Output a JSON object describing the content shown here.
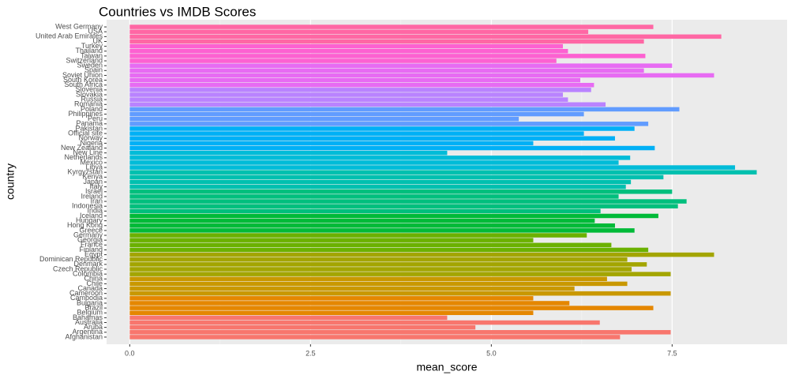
{
  "chart_data": {
    "type": "bar",
    "orientation": "horizontal",
    "title": "Countries vs IMDB Scores",
    "x_label": "mean_score",
    "y_label": "country",
    "categories": [
      "West Germany",
      "USA",
      "United Arab Emirates",
      "UK",
      "Turkey",
      "Thailand",
      "Taiwan",
      "Switzerland",
      "Sweden",
      "Spain",
      "Soviet Union",
      "South Korea",
      "South Africa",
      "Slovenia",
      "Slovakia",
      "Russia",
      "Romania",
      "Poland",
      "Philippines",
      "Peru",
      "Panama",
      "Pakistan",
      "Official site",
      "Norway",
      "Nigeria",
      "New Zealand",
      "New Line",
      "Netherlands",
      "Mexico",
      "Libya",
      "Kyrgyzstan",
      "Kenya",
      "Japan",
      "Italy",
      "Israel",
      "Ireland",
      "Iran",
      "Indonesia",
      "India",
      "Iceland",
      "Hungary",
      "Hong Kong",
      "Greece",
      "Germany",
      "Georgia",
      "France",
      "Finland",
      "Egypt",
      "Dominican Republic",
      "Denmark",
      "Czech Republic",
      "Colombia",
      "China",
      "Chile",
      "Canada",
      "Cameroon",
      "Cambodia",
      "Bulgaria",
      "Brazil",
      "Belgium",
      "Bahamas",
      "Australia",
      "Aruba",
      "Argentina",
      "Afghanistan"
    ],
    "values": [
      7.24,
      6.34,
      8.18,
      7.11,
      5.99,
      6.06,
      7.13,
      5.9,
      7.5,
      7.11,
      8.08,
      6.23,
      6.42,
      6.38,
      5.99,
      6.06,
      6.58,
      7.6,
      6.28,
      5.38,
      7.17,
      6.98,
      6.28,
      6.71,
      5.58,
      7.26,
      4.39,
      6.92,
      6.76,
      8.37,
      8.67,
      7.38,
      6.93,
      6.86,
      7.5,
      6.76,
      7.7,
      7.58,
      6.51,
      7.31,
      6.43,
      6.71,
      6.98,
      6.32,
      5.58,
      6.66,
      7.17,
      8.08,
      6.88,
      7.15,
      6.94,
      7.48,
      6.6,
      6.88,
      6.15,
      7.48,
      5.58,
      6.08,
      7.24,
      5.58,
      4.39,
      6.5,
      4.78,
      7.48,
      6.78
    ],
    "colors": [
      "#FF67A4",
      "#FF67A4",
      "#FF67A4",
      "#FF67A4",
      "#FD61D1",
      "#FD61D1",
      "#FD61D1",
      "#FD61D1",
      "#E76BF3",
      "#E76BF3",
      "#E76BF3",
      "#E76BF3",
      "#E76BF3",
      "#B983FF",
      "#B983FF",
      "#B983FF",
      "#B983FF",
      "#619CFF",
      "#619CFF",
      "#619CFF",
      "#619CFF",
      "#00B0F6",
      "#00B0F6",
      "#00B0F6",
      "#00B0F6",
      "#00B0F6",
      "#00BCD8",
      "#00BCD8",
      "#00BCD8",
      "#00BCD8",
      "#00C0AF",
      "#00C0AF",
      "#00C0AF",
      "#00C0AF",
      "#00BF7D",
      "#00BF7D",
      "#00BF7D",
      "#00BF7D",
      "#00BF7D",
      "#00BA38",
      "#00BA38",
      "#00BA38",
      "#00BA38",
      "#6BB100",
      "#6BB100",
      "#6BB100",
      "#6BB100",
      "#A3A500",
      "#A3A500",
      "#A3A500",
      "#A3A500",
      "#A3A500",
      "#C99800",
      "#C99800",
      "#C99800",
      "#C99800",
      "#E58700",
      "#E58700",
      "#E58700",
      "#E58700",
      "#F8766D",
      "#F8766D",
      "#F8766D",
      "#F8766D",
      "#F8766D"
    ],
    "xlim": [
      -0.32,
      9.09
    ],
    "xticks": [
      {
        "value": 0,
        "label": "0.0"
      },
      2.5,
      {
        "value": 5,
        "label": "5.0"
      },
      7.5
    ],
    "grid": true
  }
}
